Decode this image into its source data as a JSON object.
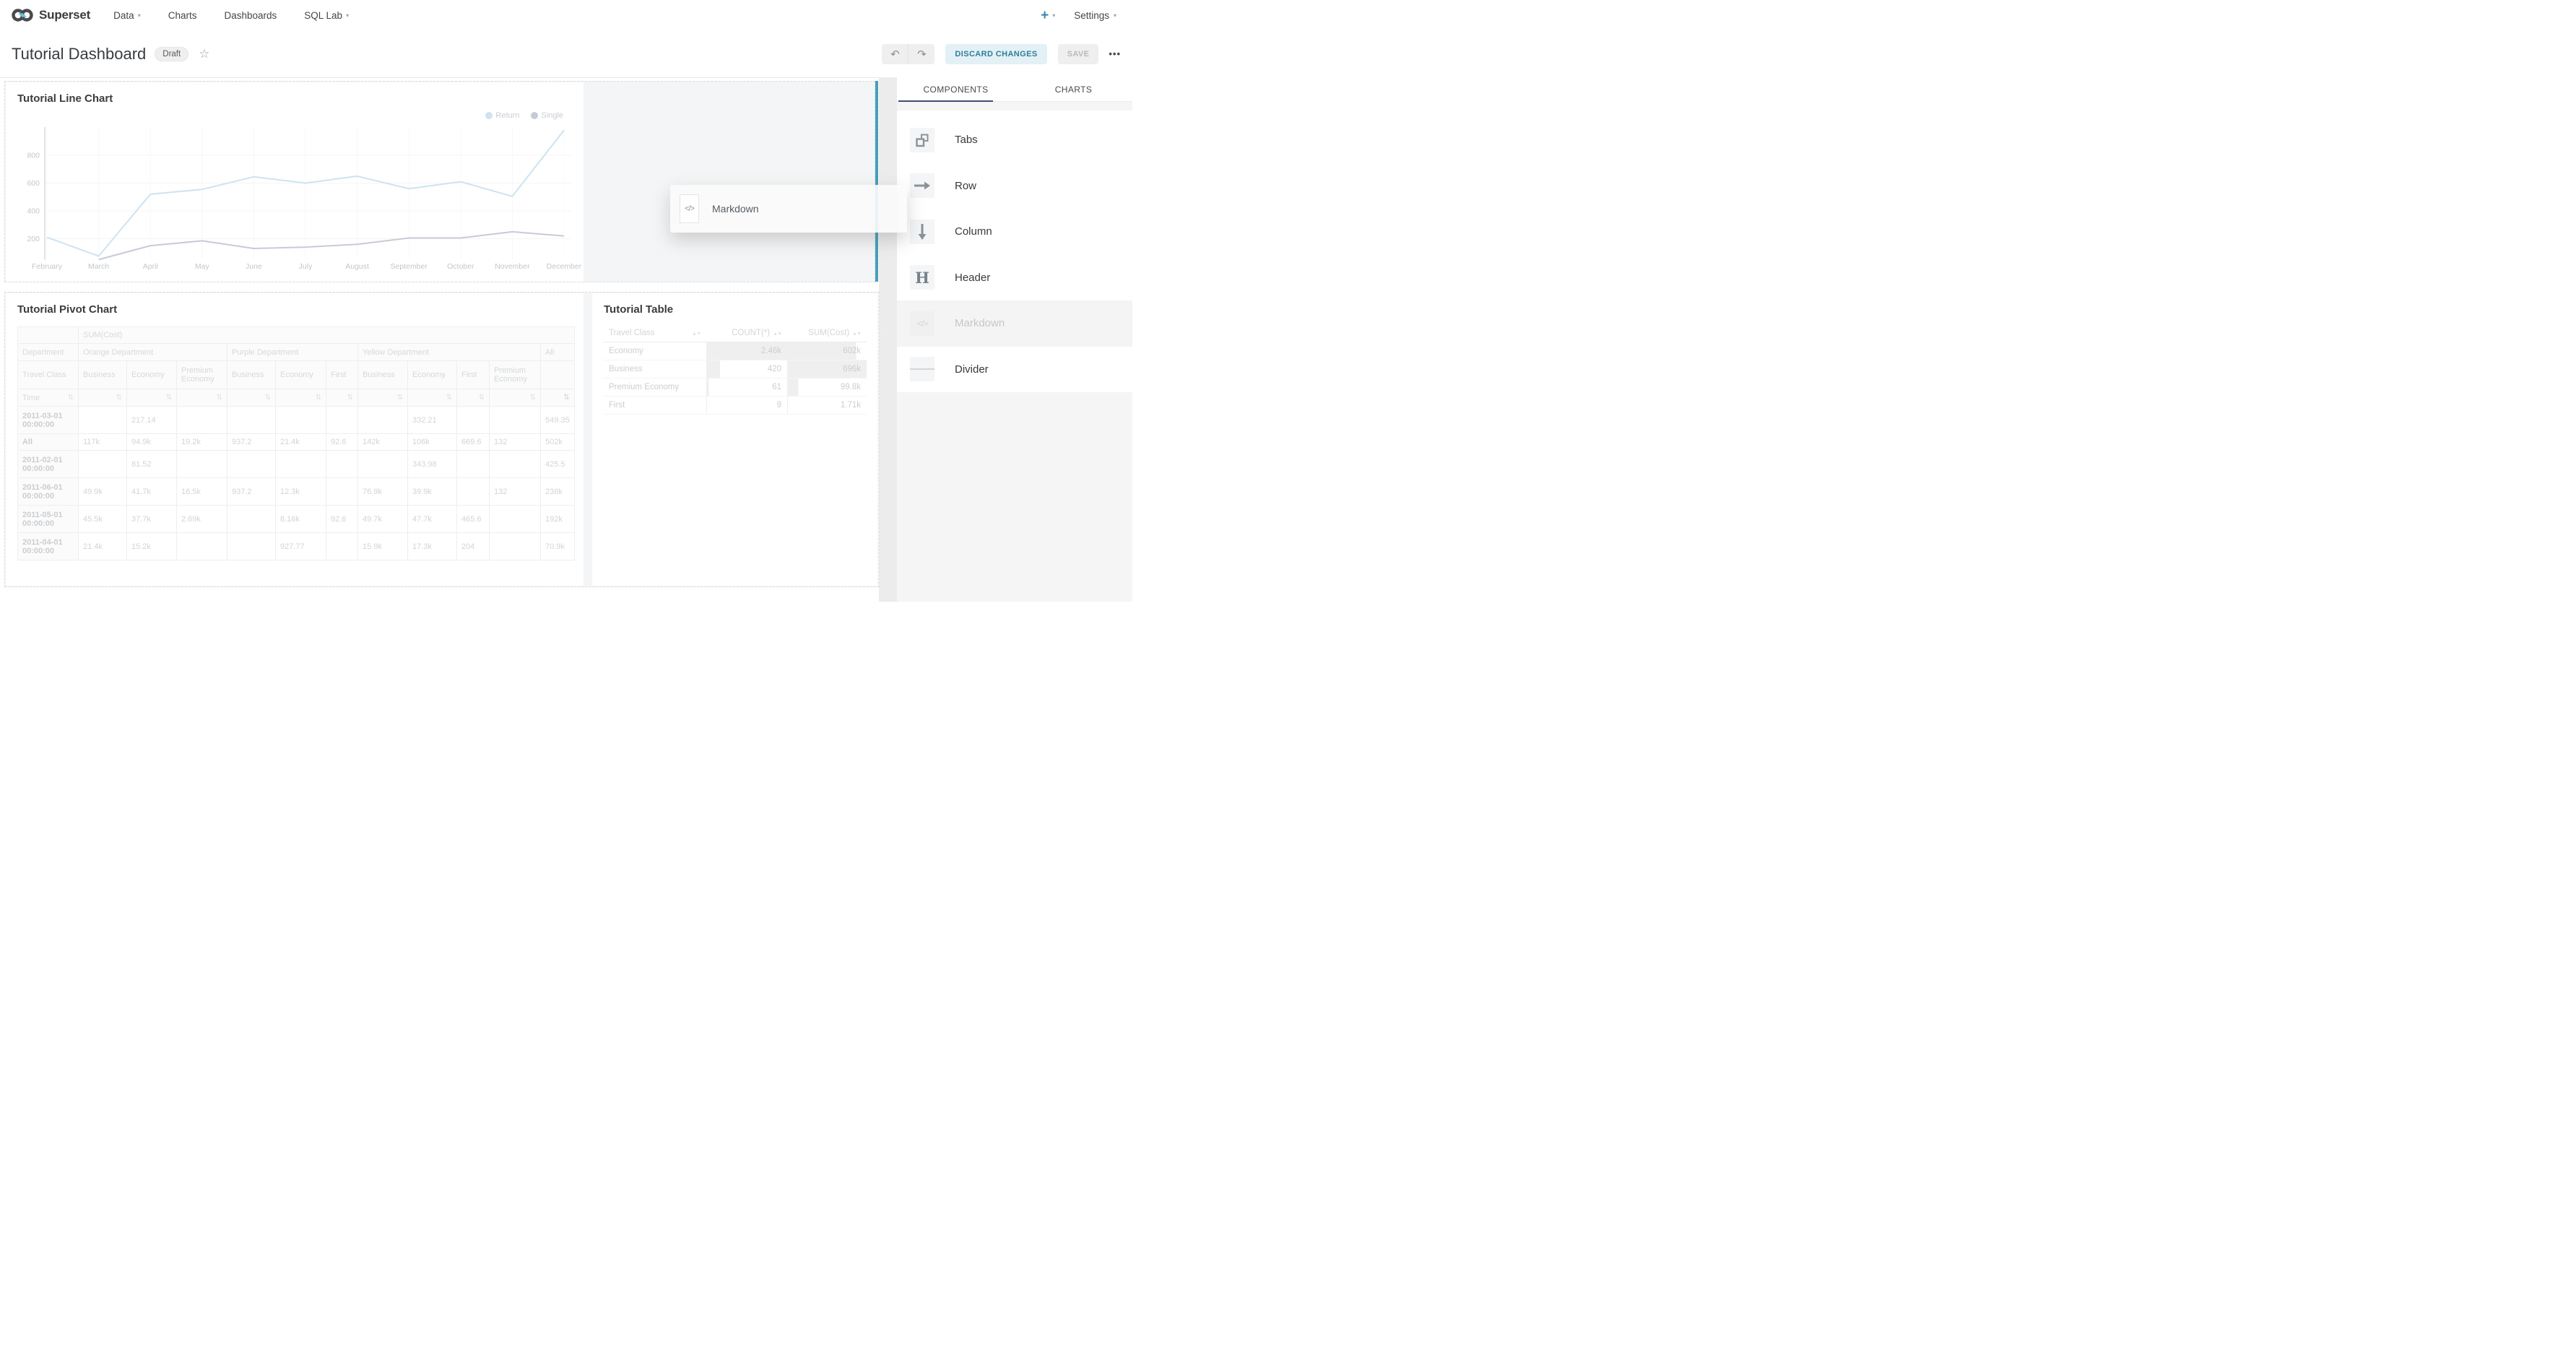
{
  "navbar": {
    "brand": "Superset",
    "menu": [
      {
        "label": "Data",
        "caret": true
      },
      {
        "label": "Charts",
        "caret": false
      },
      {
        "label": "Dashboards",
        "caret": false
      },
      {
        "label": "SQL Lab",
        "caret": true
      }
    ],
    "plus_label": "+",
    "settings_label": "Settings",
    "caret_glyph": "▾"
  },
  "header": {
    "title": "Tutorial Dashboard",
    "status_badge": "Draft",
    "star_icon": "☆",
    "undo_icon": "↶",
    "redo_icon": "↷",
    "discard_label": "DISCARD CHANGES",
    "save_label": "SAVE",
    "more_icon": "•••"
  },
  "line_chart_panel": {
    "title": "Tutorial Line Chart"
  },
  "chart_data": {
    "type": "line",
    "title": "Tutorial Line Chart",
    "x": [
      "February",
      "March",
      "April",
      "May",
      "June",
      "July",
      "August",
      "September",
      "October",
      "November",
      "December"
    ],
    "yticks": [
      200,
      400,
      600,
      800
    ],
    "ylim": [
      0,
      1000
    ],
    "grid": true,
    "legend_position": "top-right",
    "series": [
      {
        "name": "Return",
        "color": "#cde3f1",
        "values": [
          210,
          75,
          520,
          555,
          645,
          600,
          650,
          560,
          610,
          505,
          980
        ]
      },
      {
        "name": "Single",
        "color": "#c7cbd7",
        "values": [
          null,
          50,
          150,
          185,
          130,
          140,
          160,
          205,
          205,
          250,
          220
        ]
      }
    ]
  },
  "pivot_panel": {
    "title": "Tutorial Pivot Chart",
    "metric_header": "SUM(Cost)",
    "row_dim_label": "Department",
    "col_groups": [
      {
        "label": "Orange Department",
        "span": 3
      },
      {
        "label": "Purple Department",
        "span": 3
      },
      {
        "label": "Yellow Department",
        "span": 4
      },
      {
        "label": "All",
        "span": 1
      }
    ],
    "class_row_label": "Travel Class",
    "class_cols": [
      "Business",
      "Economy",
      "Premium Economy",
      "Business",
      "Economy",
      "First",
      "Business",
      "Economy",
      "First",
      "Premium Economy",
      ""
    ],
    "time_label": "Time",
    "sort_icon": "⇅",
    "rows": [
      {
        "time": "2011-03-01 00:00:00",
        "values": [
          "",
          "217.14",
          "",
          "",
          "",
          "",
          "",
          "332.21",
          "",
          "",
          "549.35"
        ]
      },
      {
        "time": "All",
        "values": [
          "117k",
          "94.9k",
          "19.2k",
          "937.2",
          "21.4k",
          "92.6",
          "142k",
          "106k",
          "669.6",
          "132",
          "502k"
        ]
      },
      {
        "time": "2011-02-01 00:00:00",
        "values": [
          "",
          "81.52",
          "",
          "",
          "",
          "",
          "",
          "343.98",
          "",
          "",
          "425.5"
        ]
      },
      {
        "time": "2011-06-01 00:00:00",
        "values": [
          "49.9k",
          "41.7k",
          "16.5k",
          "937.2",
          "12.3k",
          "",
          "76.9k",
          "39.9k",
          "",
          "132",
          "238k"
        ]
      },
      {
        "time": "2011-05-01 00:00:00",
        "values": [
          "45.5k",
          "37.7k",
          "2.69k",
          "",
          "8.16k",
          "92.6",
          "49.7k",
          "47.7k",
          "465.6",
          "",
          "192k"
        ]
      },
      {
        "time": "2011-04-01 00:00:00",
        "values": [
          "21.4k",
          "15.2k",
          "",
          "",
          "927.77",
          "",
          "15.9k",
          "17.3k",
          "204",
          "",
          "70.9k"
        ]
      }
    ]
  },
  "table_panel": {
    "title": "Tutorial Table",
    "columns": [
      "Travel Class",
      "COUNT(*)",
      "SUM(Cost)"
    ],
    "sort_carets": "▲▼",
    "rows": [
      {
        "travel_class": "Economy",
        "count": "2.46k",
        "sum": "602k",
        "count_bar_pct": 100,
        "sum_bar_pct": 87
      },
      {
        "travel_class": "Business",
        "count": "420",
        "sum": "696k",
        "count_bar_pct": 17,
        "sum_bar_pct": 100
      },
      {
        "travel_class": "Premium Economy",
        "count": "61",
        "sum": "99.8k",
        "count_bar_pct": 3,
        "sum_bar_pct": 14
      },
      {
        "travel_class": "First",
        "count": "9",
        "sum": "1.71k",
        "count_bar_pct": 1,
        "sum_bar_pct": 1
      }
    ]
  },
  "sidebar": {
    "tabs": [
      {
        "label": "COMPONENTS",
        "active": true
      },
      {
        "label": "CHARTS",
        "active": false
      }
    ],
    "items": [
      {
        "label": "Tabs",
        "icon": "tabs-icon"
      },
      {
        "label": "Row",
        "icon": "row-arrow-icon"
      },
      {
        "label": "Column",
        "icon": "column-arrow-icon"
      },
      {
        "label": "Header",
        "icon": "header-icon"
      },
      {
        "label": "Markdown",
        "icon": "markdown-icon",
        "state": "dragging"
      },
      {
        "label": "Divider",
        "icon": "divider-icon"
      }
    ]
  },
  "drag_ghost": {
    "label": "Markdown",
    "icon_glyph": "</>"
  },
  "colors": {
    "drop_indicator": "#45a0b9",
    "plus_button": "#3d87a9",
    "tab_underline": "#414c73",
    "discard_bg": "#e3f1f6",
    "discard_text": "#2e7d98"
  }
}
